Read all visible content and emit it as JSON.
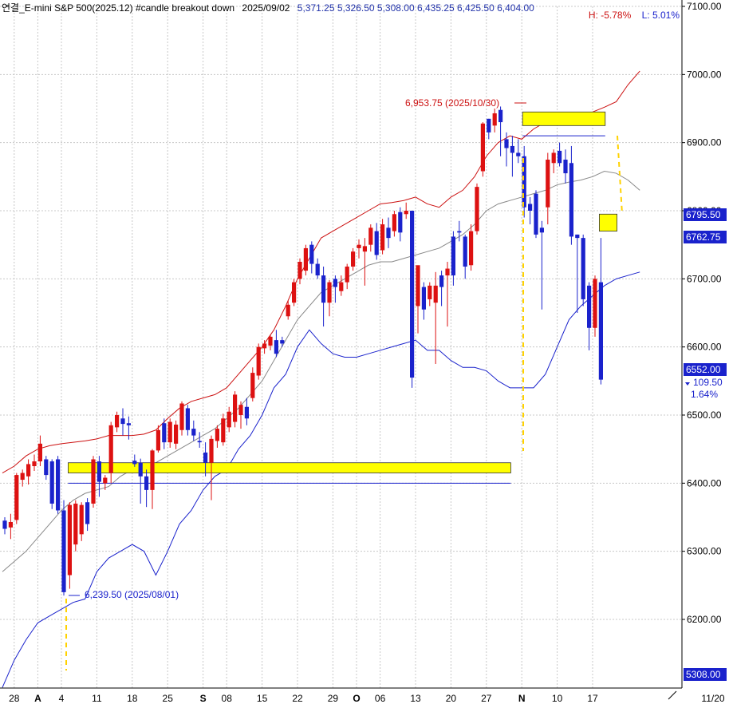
{
  "header": {
    "title": "연결_E-mini S&P 500(2025.12) #candle breakout down",
    "date": "2025/09/02",
    "ohlc_values": [
      "5,371.25",
      "5,326.50",
      "5,308.00",
      "6,435.25",
      "6,425.50",
      "6,404.00"
    ],
    "high_pct_label": "H: -5.78%",
    "low_pct_label": "L: 5.01%"
  },
  "annotations": {
    "high_label": "6,953.75 (2025/10/30)",
    "low_label": "6,239.50 (2025/08/01)"
  },
  "axis_badges": {
    "upper_box": "6795.50",
    "lower_box": "6762.75",
    "last_price": "6552.00",
    "change_abs": "109.50",
    "change_pct": "1.64%",
    "bottom_box": "5308.00"
  },
  "colors": {
    "up": "#dd1111",
    "down": "#1a22cc",
    "band_upper": "#cc1111",
    "band_lower": "#1a22cc",
    "band_middle": "#888888",
    "zone_fill": "#ffff00",
    "grid": "#c8c8c8"
  },
  "chart_data": {
    "type": "candlestick",
    "y_axis": {
      "range": [
        6150,
        7100
      ],
      "ticks": [
        6200,
        6300,
        6400,
        6500,
        6600,
        6700,
        6800,
        6900,
        7000,
        7100
      ],
      "tick_labels": [
        "6200.00",
        "6300.00",
        "6400.00",
        "6500.00",
        "6600.00",
        "6700.00",
        "6800.00",
        "6900.00",
        "7000.00",
        "7100.00"
      ],
      "position": "right"
    },
    "x_axis": {
      "tick_labels": [
        "28",
        "A",
        "4",
        "11",
        "18",
        "25",
        "S",
        "08",
        "15",
        "22",
        "29",
        "O",
        "06",
        "13",
        "20",
        "27",
        "N",
        "10",
        "17",
        "11/20"
      ],
      "tick_index": [
        1,
        3,
        5,
        8,
        11,
        14,
        17,
        19,
        22,
        25,
        28,
        30,
        32,
        35,
        38,
        41,
        44,
        47,
        50,
        55
      ]
    },
    "grid": true,
    "candles": [
      {
        "o": 6345,
        "h": 6350,
        "l": 6325,
        "c": 6333
      },
      {
        "o": 6335,
        "h": 6355,
        "l": 6318,
        "c": 6343
      },
      {
        "o": 6346,
        "h": 6415,
        "l": 6340,
        "c": 6412
      },
      {
        "o": 6405,
        "h": 6420,
        "l": 6395,
        "c": 6415
      },
      {
        "o": 6410,
        "h": 6435,
        "l": 6398,
        "c": 6428
      },
      {
        "o": 6425,
        "h": 6442,
        "l": 6418,
        "c": 6432
      },
      {
        "o": 6432,
        "h": 6470,
        "l": 6425,
        "c": 6458
      },
      {
        "o": 6435,
        "h": 6440,
        "l": 6405,
        "c": 6412
      },
      {
        "o": 6432,
        "h": 6435,
        "l": 6362,
        "c": 6370
      },
      {
        "o": 6435,
        "h": 6440,
        "l": 6355,
        "c": 6360
      },
      {
        "o": 6360,
        "h": 6375,
        "l": 6235,
        "c": 6240
      },
      {
        "o": 6265,
        "h": 6372,
        "l": 6245,
        "c": 6368
      },
      {
        "o": 6310,
        "h": 6375,
        "l": 6300,
        "c": 6370
      },
      {
        "o": 6325,
        "h": 6372,
        "l": 6315,
        "c": 6368
      },
      {
        "o": 6372,
        "h": 6378,
        "l": 6330,
        "c": 6340
      },
      {
        "o": 6370,
        "h": 6440,
        "l": 6364,
        "c": 6435
      },
      {
        "o": 6432,
        "h": 6440,
        "l": 6380,
        "c": 6402
      },
      {
        "o": 6400,
        "h": 6412,
        "l": 6390,
        "c": 6408
      },
      {
        "o": 6415,
        "h": 6490,
        "l": 6400,
        "c": 6485
      },
      {
        "o": 6482,
        "h": 6505,
        "l": 6475,
        "c": 6500
      },
      {
        "o": 6495,
        "h": 6510,
        "l": 6470,
        "c": 6487
      },
      {
        "o": 6488,
        "h": 6498,
        "l": 6464,
        "c": 6485
      },
      {
        "o": 6433,
        "h": 6442,
        "l": 6424,
        "c": 6428
      },
      {
        "o": 6430,
        "h": 6436,
        "l": 6370,
        "c": 6410
      },
      {
        "o": 6410,
        "h": 6420,
        "l": 6365,
        "c": 6390
      },
      {
        "o": 6390,
        "h": 6450,
        "l": 6362,
        "c": 6448
      },
      {
        "o": 6448,
        "h": 6485,
        "l": 6445,
        "c": 6478
      },
      {
        "o": 6488,
        "h": 6495,
        "l": 6450,
        "c": 6460
      },
      {
        "o": 6460,
        "h": 6495,
        "l": 6452,
        "c": 6490
      },
      {
        "o": 6458,
        "h": 6492,
        "l": 6450,
        "c": 6486
      },
      {
        "o": 6478,
        "h": 6520,
        "l": 6470,
        "c": 6517
      },
      {
        "o": 6510,
        "h": 6515,
        "l": 6470,
        "c": 6478
      },
      {
        "o": 6480,
        "h": 6492,
        "l": 6462,
        "c": 6470
      },
      {
        "o": 6462,
        "h": 6475,
        "l": 6452,
        "c": 6460
      },
      {
        "o": 6445,
        "h": 6460,
        "l": 6410,
        "c": 6430
      },
      {
        "o": 6430,
        "h": 6470,
        "l": 6375,
        "c": 6465
      },
      {
        "o": 6462,
        "h": 6485,
        "l": 6452,
        "c": 6480
      },
      {
        "o": 6460,
        "h": 6502,
        "l": 6455,
        "c": 6495
      },
      {
        "o": 6482,
        "h": 6512,
        "l": 6475,
        "c": 6505
      },
      {
        "o": 6490,
        "h": 6535,
        "l": 6482,
        "c": 6530
      },
      {
        "o": 6500,
        "h": 6520,
        "l": 6480,
        "c": 6515
      },
      {
        "o": 6512,
        "h": 6525,
        "l": 6485,
        "c": 6495
      },
      {
        "o": 6525,
        "h": 6570,
        "l": 6520,
        "c": 6562
      },
      {
        "o": 6558,
        "h": 6605,
        "l": 6552,
        "c": 6600
      },
      {
        "o": 6598,
        "h": 6610,
        "l": 6590,
        "c": 6605
      },
      {
        "o": 6602,
        "h": 6618,
        "l": 6595,
        "c": 6615
      },
      {
        "o": 6610,
        "h": 6625,
        "l": 6585,
        "c": 6590
      },
      {
        "o": 6610,
        "h": 6615,
        "l": 6600,
        "c": 6605
      },
      {
        "o": 6645,
        "h": 6668,
        "l": 6640,
        "c": 6662
      },
      {
        "o": 6665,
        "h": 6700,
        "l": 6660,
        "c": 6695
      },
      {
        "o": 6700,
        "h": 6730,
        "l": 6692,
        "c": 6725
      },
      {
        "o": 6712,
        "h": 6750,
        "l": 6705,
        "c": 6745
      },
      {
        "o": 6750,
        "h": 6755,
        "l": 6708,
        "c": 6722
      },
      {
        "o": 6722,
        "h": 6730,
        "l": 6700,
        "c": 6705
      },
      {
        "o": 6705,
        "h": 6718,
        "l": 6630,
        "c": 6665
      },
      {
        "o": 6665,
        "h": 6698,
        "l": 6645,
        "c": 6695
      },
      {
        "o": 6700,
        "h": 6705,
        "l": 6665,
        "c": 6688
      },
      {
        "o": 6682,
        "h": 6705,
        "l": 6675,
        "c": 6695
      },
      {
        "o": 6695,
        "h": 6722,
        "l": 6685,
        "c": 6718
      },
      {
        "o": 6718,
        "h": 6745,
        "l": 6712,
        "c": 6740
      },
      {
        "o": 6745,
        "h": 6758,
        "l": 6730,
        "c": 6750
      },
      {
        "o": 6740,
        "h": 6760,
        "l": 6690,
        "c": 6748
      },
      {
        "o": 6750,
        "h": 6780,
        "l": 6740,
        "c": 6775
      },
      {
        "o": 6770,
        "h": 6782,
        "l": 6728,
        "c": 6735
      },
      {
        "o": 6742,
        "h": 6788,
        "l": 6736,
        "c": 6780
      },
      {
        "o": 6775,
        "h": 6790,
        "l": 6745,
        "c": 6760
      },
      {
        "o": 6770,
        "h": 6800,
        "l": 6762,
        "c": 6795
      },
      {
        "o": 6798,
        "h": 6805,
        "l": 6755,
        "c": 6768
      },
      {
        "o": 6795,
        "h": 6812,
        "l": 6788,
        "c": 6800
      },
      {
        "o": 6800,
        "h": 6800,
        "l": 6540,
        "c": 6555
      },
      {
        "o": 6660,
        "h": 6715,
        "l": 6620,
        "c": 6720
      },
      {
        "o": 6688,
        "h": 6695,
        "l": 6640,
        "c": 6655
      },
      {
        "o": 6670,
        "h": 6695,
        "l": 6660,
        "c": 6690
      },
      {
        "o": 6665,
        "h": 6710,
        "l": 6575,
        "c": 6690
      },
      {
        "o": 6705,
        "h": 6712,
        "l": 6660,
        "c": 6688
      },
      {
        "o": 6705,
        "h": 6725,
        "l": 6630,
        "c": 6715
      },
      {
        "o": 6762,
        "h": 6770,
        "l": 6690,
        "c": 6705
      },
      {
        "o": 6770,
        "h": 6785,
        "l": 6755,
        "c": 6768
      },
      {
        "o": 6762,
        "h": 6765,
        "l": 6700,
        "c": 6718
      },
      {
        "o": 6720,
        "h": 6780,
        "l": 6712,
        "c": 6770
      },
      {
        "o": 6770,
        "h": 6840,
        "l": 6765,
        "c": 6835
      },
      {
        "o": 6858,
        "h": 6930,
        "l": 6850,
        "c": 6928
      },
      {
        "o": 6935,
        "h": 6935,
        "l": 6905,
        "c": 6915
      },
      {
        "o": 6925,
        "h": 6950,
        "l": 6915,
        "c": 6943
      },
      {
        "o": 6948,
        "h": 6953,
        "l": 6880,
        "c": 6930
      },
      {
        "o": 6905,
        "h": 6915,
        "l": 6865,
        "c": 6892
      },
      {
        "o": 6895,
        "h": 6910,
        "l": 6850,
        "c": 6885
      },
      {
        "o": 6885,
        "h": 6905,
        "l": 6870,
        "c": 6880
      },
      {
        "o": 6880,
        "h": 6895,
        "l": 6790,
        "c": 6805
      },
      {
        "o": 6810,
        "h": 6820,
        "l": 6780,
        "c": 6800
      },
      {
        "o": 6825,
        "h": 6830,
        "l": 6760,
        "c": 6765
      },
      {
        "o": 6775,
        "h": 6785,
        "l": 6655,
        "c": 6768
      },
      {
        "o": 6805,
        "h": 6885,
        "l": 6780,
        "c": 6875
      },
      {
        "o": 6870,
        "h": 6890,
        "l": 6855,
        "c": 6885
      },
      {
        "o": 6888,
        "h": 6900,
        "l": 6865,
        "c": 6870
      },
      {
        "o": 6875,
        "h": 6890,
        "l": 6840,
        "c": 6855
      },
      {
        "o": 6870,
        "h": 6895,
        "l": 6750,
        "c": 6762
      },
      {
        "o": 6765,
        "h": 6765,
        "l": 6650,
        "c": 6760
      },
      {
        "o": 6760,
        "h": 6765,
        "l": 6660,
        "c": 6670
      },
      {
        "o": 6690,
        "h": 6695,
        "l": 6595,
        "c": 6628
      },
      {
        "o": 6628,
        "h": 6705,
        "l": 6615,
        "c": 6700
      },
      {
        "o": 6695,
        "h": 6760,
        "l": 6545,
        "c": 6552
      }
    ],
    "bollinger": {
      "upper": [
        6415,
        6425,
        6440,
        6450,
        6455,
        6458,
        6460,
        6462,
        6465,
        6470,
        6470,
        6470,
        6472,
        6478,
        6495,
        6510,
        6520,
        6525,
        6530,
        6540,
        6560,
        6580,
        6600,
        6625,
        6660,
        6700,
        6730,
        6760,
        6770,
        6780,
        6790,
        6800,
        6810,
        6812,
        6815,
        6820,
        6810,
        6805,
        6820,
        6830,
        6850,
        6880,
        6900,
        6910,
        6905,
        6920,
        6930,
        6935,
        6940,
        6935,
        6945,
        6952,
        6960,
        6985,
        7005
      ],
      "middle": [
        6270,
        6285,
        6300,
        6320,
        6340,
        6360,
        6375,
        6385,
        6390,
        6395,
        6410,
        6420,
        6425,
        6430,
        6440,
        6450,
        6460,
        6470,
        6480,
        6495,
        6510,
        6530,
        6550,
        6580,
        6610,
        6640,
        6660,
        6680,
        6690,
        6700,
        6710,
        6720,
        6725,
        6725,
        6730,
        6735,
        6740,
        6745,
        6755,
        6765,
        6780,
        6800,
        6810,
        6815,
        6820,
        6825,
        6830,
        6838,
        6842,
        6845,
        6850,
        6858,
        6855,
        6845,
        6830
      ],
      "lower": [
        6100,
        6140,
        6170,
        6195,
        6205,
        6215,
        6225,
        6230,
        6270,
        6290,
        6300,
        6310,
        6300,
        6265,
        6300,
        6340,
        6360,
        6390,
        6410,
        6420,
        6450,
        6470,
        6500,
        6540,
        6560,
        6600,
        6625,
        6605,
        6590,
        6585,
        6585,
        6590,
        6595,
        6600,
        6605,
        6610,
        6595,
        6595,
        6580,
        6570,
        6570,
        6565,
        6550,
        6540,
        6540,
        6540,
        6560,
        6600,
        6640,
        6660,
        6675,
        6690,
        6700,
        6705,
        6710
      ]
    },
    "zones": [
      {
        "from": 6415,
        "to": 6430,
        "x_start": 11,
        "x_end": 86,
        "fill": "#ffff00"
      },
      {
        "from": 6400,
        "to": 6400,
        "x_start": 11,
        "x_end": 86,
        "fill": "none"
      },
      {
        "from": 6925,
        "to": 6945,
        "x_start": 88,
        "x_end": 102,
        "fill": "#ffff00"
      },
      {
        "from": 6910,
        "to": 6910,
        "x_start": 88,
        "x_end": 102,
        "fill": "none"
      },
      {
        "from": 6770,
        "to": 6795,
        "x_start": 101,
        "x_end": 104,
        "fill": "#ffff00"
      }
    ]
  }
}
